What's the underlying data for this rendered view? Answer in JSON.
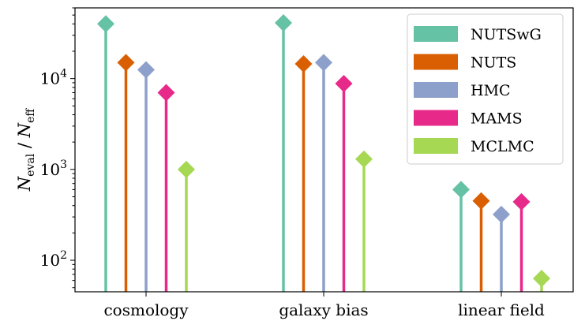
{
  "chart_data": {
    "type": "stem",
    "categories": [
      "cosmology",
      "galaxy bias",
      "linear field"
    ],
    "series": [
      {
        "name": "NUTSwG",
        "color": "#66c2a5",
        "values": [
          40000,
          41000,
          600
        ]
      },
      {
        "name": "NUTS",
        "color": "#d95f02",
        "values": [
          15000,
          14500,
          450
        ]
      },
      {
        "name": "HMC",
        "color": "#8da0cb",
        "values": [
          12500,
          15000,
          320
        ]
      },
      {
        "name": "MAMS",
        "color": "#e7298a",
        "values": [
          7000,
          8800,
          440
        ]
      },
      {
        "name": "MCLMC",
        "color": "#a6d854",
        "values": [
          1000,
          1300,
          63
        ]
      }
    ],
    "ylabel": {
      "main": "N",
      "main_sub": "eval",
      "sep": " / ",
      "denom": "N",
      "denom_sub": "eff"
    },
    "yscale": "log",
    "ylim": [
      45,
      60000
    ],
    "yticks": [
      {
        "value": 100,
        "base": "10",
        "exp": "2"
      },
      {
        "value": 1000,
        "base": "10",
        "exp": "3"
      },
      {
        "value": 10000,
        "base": "10",
        "exp": "4"
      }
    ],
    "legend_position": "top-right",
    "grid": false
  }
}
